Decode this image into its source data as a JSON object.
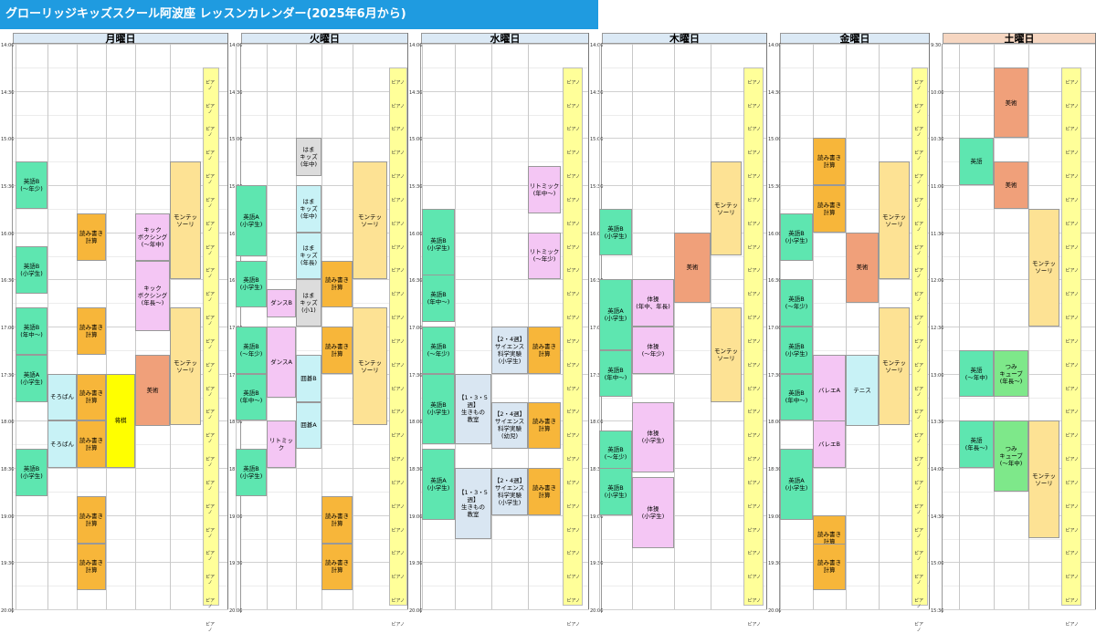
{
  "title": "グローリッジキッズスクール阿波座 レッスンカレンダー(2025年6月から)",
  "colors": {
    "green": "#5ee6b0",
    "orange": "#f7b63a",
    "pink": "#f4c6f4",
    "cream": "#fde294",
    "salmon": "#f0a07a",
    "lightblue": "#c8f2f6",
    "gray": "#dcdcdc",
    "bluegray": "#d9e6f2",
    "lime": "#7ee88a",
    "yellow": "#ffff00",
    "piano": "#ffff99"
  },
  "piano_label": "ピアノ",
  "days": [
    {
      "name": "月曜日",
      "header_color": "#dbe9f5",
      "times": [
        "14:00",
        "14:30",
        "15:00",
        "15:30",
        "16:00",
        "16:30",
        "17:00",
        "17:30",
        "18:00",
        "18:30",
        "19:00",
        "19:30",
        "20:00"
      ],
      "blocks": [
        {
          "label": "英語B\n(〜年少)",
          "color": "green"
        },
        {
          "label": "英語B\n(小学生)",
          "color": "green"
        },
        {
          "label": "英語B\n(年中〜)",
          "color": "green"
        },
        {
          "label": "英語A\n(小学生)",
          "color": "green"
        },
        {
          "label": "英語B\n(小学生)",
          "color": "green"
        },
        {
          "label": "そろばん",
          "color": "lightblue"
        },
        {
          "label": "そろばん",
          "color": "lightblue"
        },
        {
          "label": "読み書き\n計算",
          "color": "orange"
        },
        {
          "label": "読み書き\n計算",
          "color": "orange"
        },
        {
          "label": "読み書き\n計算",
          "color": "orange"
        },
        {
          "label": "読み書き\n計算",
          "color": "orange"
        },
        {
          "label": "読み書き\n計算",
          "color": "orange"
        },
        {
          "label": "読み書き\n計算",
          "color": "orange"
        },
        {
          "label": "将棋",
          "color": "yellow"
        },
        {
          "label": "キック\nボクシング\n(〜年中)",
          "color": "pink"
        },
        {
          "label": "キック\nボクシング\n(年長〜)",
          "color": "pink"
        },
        {
          "label": "美術",
          "color": "salmon"
        },
        {
          "label": "モンテッ\nソーリ",
          "color": "cream"
        },
        {
          "label": "モンテッ\nソーリ",
          "color": "cream"
        }
      ]
    },
    {
      "name": "火曜日",
      "header_color": "#dbe9f5",
      "times": [
        "14:00",
        "14:30",
        "15:00",
        "15:30",
        "16:00",
        "16:30",
        "17:00",
        "17:30",
        "18:00",
        "18:30",
        "19:00",
        "19:30",
        "20:00"
      ],
      "blocks": [
        {
          "label": "英語A\n(小学生)",
          "color": "green"
        },
        {
          "label": "英語B\n(小学生)",
          "color": "green"
        },
        {
          "label": "英語B\n(〜年少)",
          "color": "green"
        },
        {
          "label": "英語B\n(年中〜)",
          "color": "green"
        },
        {
          "label": "英語B\n(小学生)",
          "color": "green"
        },
        {
          "label": "ダンスB",
          "color": "pink"
        },
        {
          "label": "ダンスA",
          "color": "pink"
        },
        {
          "label": "リトミック",
          "color": "pink"
        },
        {
          "label": "はま\nキッズ\n(年中)",
          "color": "gray"
        },
        {
          "label": "はま\nキッズ\n(年中)",
          "color": "lightblue"
        },
        {
          "label": "はま\nキッズ\n(年長)",
          "color": "lightblue"
        },
        {
          "label": "はま\nキッズ\n(小1)",
          "color": "gray"
        },
        {
          "label": "囲碁B",
          "color": "lightblue"
        },
        {
          "label": "囲碁A",
          "color": "lightblue"
        },
        {
          "label": "読み書き\n計算",
          "color": "orange"
        },
        {
          "label": "読み書き\n計算",
          "color": "orange"
        },
        {
          "label": "読み書き\n計算",
          "color": "orange"
        },
        {
          "label": "読み書き\n計算",
          "color": "orange"
        },
        {
          "label": "モンテッ\nソーリ",
          "color": "cream"
        },
        {
          "label": "モンテッ\nソーリ",
          "color": "cream"
        }
      ]
    },
    {
      "name": "水曜日",
      "header_color": "#dbe9f5",
      "times": [
        "14:00",
        "14:30",
        "15:00",
        "15:30",
        "16:00",
        "16:30",
        "17:00",
        "17:30",
        "18:00",
        "18:30",
        "19:00",
        "19:30",
        "20:00"
      ],
      "blocks": [
        {
          "label": "英語B\n(小学生)",
          "color": "green"
        },
        {
          "label": "英語B\n(年中〜)",
          "color": "green"
        },
        {
          "label": "英語B\n(〜年少)",
          "color": "green"
        },
        {
          "label": "英語B\n(小学生)",
          "color": "green"
        },
        {
          "label": "英語A\n(小学生)",
          "color": "green"
        },
        {
          "label": "【1・3・5週】\n生きもの\n教室",
          "color": "bluegray"
        },
        {
          "label": "【1・3・5週】\n生きもの\n教室",
          "color": "bluegray"
        },
        {
          "label": "【2・4週】\nサイエンス\n科学実験\n(小学生)",
          "color": "bluegray"
        },
        {
          "label": "【2・4週】\nサイエンス\n科学実験\n(幼児)",
          "color": "bluegray"
        },
        {
          "label": "【2・4週】\nサイエンス\n科学実験\n(小学生)",
          "color": "bluegray"
        },
        {
          "label": "リトミック\n(年中〜)",
          "color": "pink"
        },
        {
          "label": "リトミック\n(〜年少)",
          "color": "pink"
        },
        {
          "label": "読み書き\n計算",
          "color": "orange"
        },
        {
          "label": "読み書き\n計算",
          "color": "orange"
        },
        {
          "label": "読み書き\n計算",
          "color": "orange"
        }
      ]
    },
    {
      "name": "木曜日",
      "header_color": "#dbe9f5",
      "times": [
        "14:00",
        "14:30",
        "15:00",
        "15:30",
        "16:00",
        "16:30",
        "17:00",
        "17:30",
        "18:00",
        "18:30",
        "19:00",
        "19:30",
        "20:00"
      ],
      "blocks": [
        {
          "label": "英語B\n(小学生)",
          "color": "green"
        },
        {
          "label": "英語A\n(小学生)",
          "color": "green"
        },
        {
          "label": "英語B\n(年中〜)",
          "color": "green"
        },
        {
          "label": "英語B\n(〜年少)",
          "color": "green"
        },
        {
          "label": "英語B\n(小学生)",
          "color": "green"
        },
        {
          "label": "体操\n(年中、年長)",
          "color": "pink"
        },
        {
          "label": "体操\n(〜年少)",
          "color": "pink"
        },
        {
          "label": "体操\n(小学生)",
          "color": "pink"
        },
        {
          "label": "体操\n(小学生)",
          "color": "pink"
        },
        {
          "label": "美術",
          "color": "salmon"
        },
        {
          "label": "モンテッ\nソーリ",
          "color": "cream"
        },
        {
          "label": "モンテッ\nソーリ",
          "color": "cream"
        }
      ]
    },
    {
      "name": "金曜日",
      "header_color": "#dbe9f5",
      "times": [
        "14:00",
        "14:30",
        "15:00",
        "15:30",
        "16:00",
        "16:30",
        "17:00",
        "17:30",
        "18:00",
        "18:30",
        "19:00",
        "19:30",
        "20:00"
      ],
      "blocks": [
        {
          "label": "英語B\n(小学生)",
          "color": "green"
        },
        {
          "label": "英語B\n(〜年少)",
          "color": "green"
        },
        {
          "label": "英語B\n(小学生)",
          "color": "green"
        },
        {
          "label": "英語B\n(年中〜)",
          "color": "green"
        },
        {
          "label": "英語A\n(小学生)",
          "color": "green"
        },
        {
          "label": "読み書き\n計算",
          "color": "orange"
        },
        {
          "label": "読み書き\n計算",
          "color": "orange"
        },
        {
          "label": "読み書き\n計算",
          "color": "orange"
        },
        {
          "label": "読み書き\n計算",
          "color": "orange"
        },
        {
          "label": "バレエA",
          "color": "pink"
        },
        {
          "label": "バレエB",
          "color": "pink"
        },
        {
          "label": "テニス",
          "color": "lightblue"
        },
        {
          "label": "美術",
          "color": "salmon"
        },
        {
          "label": "モンテッ\nソーリ",
          "color": "cream"
        },
        {
          "label": "モンテッ\nソーリ",
          "color": "cream"
        }
      ]
    },
    {
      "name": "土曜日",
      "header_color": "#f6d6c1",
      "times": [
        "9:30",
        "10:00",
        "10:30",
        "11:00",
        "11:30",
        "12:00",
        "12:30",
        "13:00",
        "13:30",
        "14:00",
        "14:30",
        "15:00",
        "15:30"
      ],
      "blocks": [
        {
          "label": "英語",
          "color": "green"
        },
        {
          "label": "英語\n(〜年中)",
          "color": "green"
        },
        {
          "label": "英語\n(年長〜)",
          "color": "green"
        },
        {
          "label": "美術",
          "color": "salmon"
        },
        {
          "label": "美術",
          "color": "salmon"
        },
        {
          "label": "つみ\nキューブ\n(年長〜)",
          "color": "lime"
        },
        {
          "label": "つみ\nキューブ\n(〜年中)",
          "color": "lime"
        },
        {
          "label": "モンテッ\nソーリ",
          "color": "cream"
        },
        {
          "label": "モンテッ\nソーリ",
          "color": "cream"
        }
      ]
    }
  ]
}
